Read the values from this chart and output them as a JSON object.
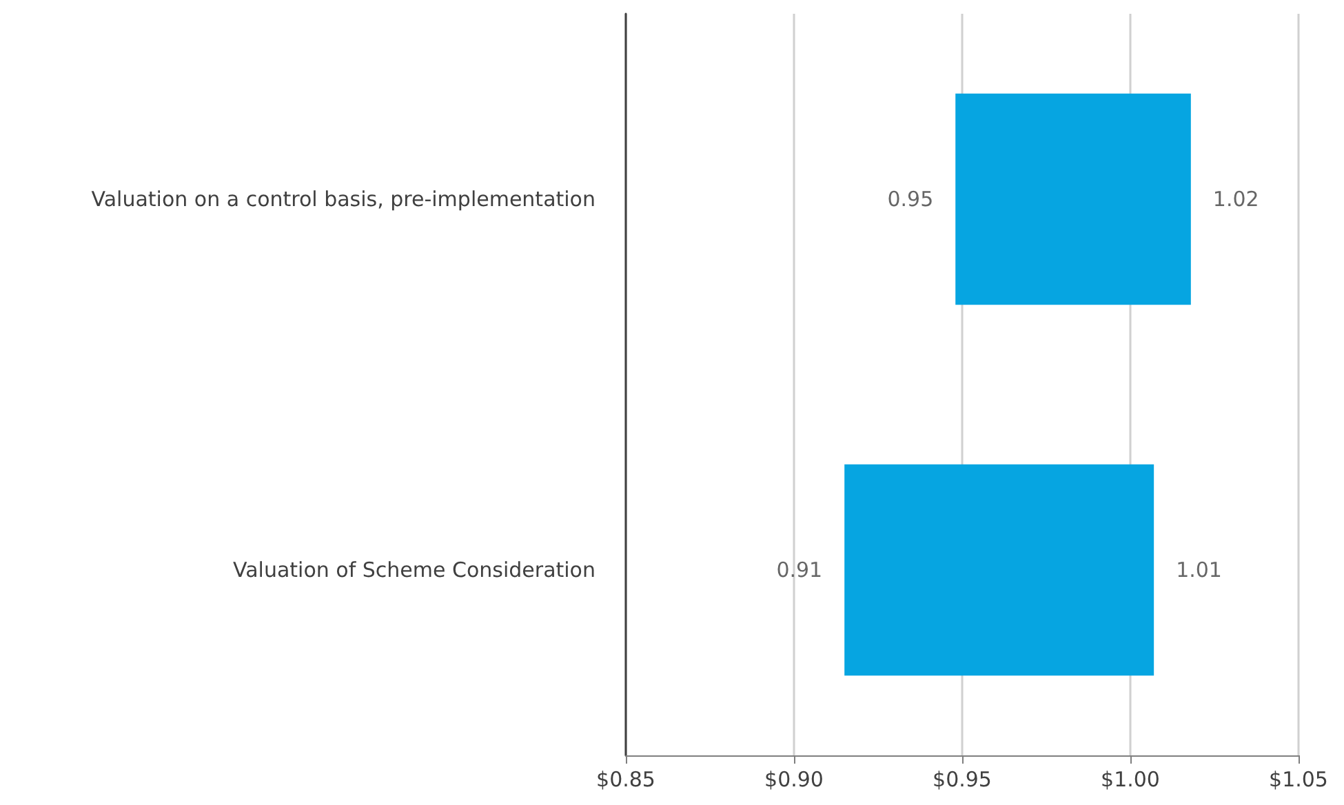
{
  "chart_data": {
    "type": "bar",
    "orientation": "horizontal",
    "categories": [
      "Valuation on a control basis, pre-implementation",
      "Valuation of Scheme Consideration"
    ],
    "base": [
      0.948,
      0.915
    ],
    "values": [
      0.07,
      0.092
    ],
    "color": "#06a5e1",
    "xlim": [
      0.85,
      1.05
    ],
    "xticks": [
      {
        "value": 0.85,
        "label": "$0.85"
      },
      {
        "value": 0.9,
        "label": "$0.90"
      },
      {
        "value": 0.95,
        "label": "$0.95"
      },
      {
        "value": 1.0,
        "label": "$1.00"
      },
      {
        "value": 1.05,
        "label": "$1.05"
      }
    ],
    "annotations": [
      {
        "text": "0.95",
        "x": 0.948,
        "y": "Valuation on a control basis, pre-implementation"
      },
      {
        "text": "1.02",
        "x": 1.018,
        "y": "Valuation on a control basis, pre-implementation"
      },
      {
        "text": "0.91",
        "x": 0.915,
        "y": "Valuation of Scheme Consideration"
      },
      {
        "text": "1.01",
        "x": 1.007,
        "y": "Valuation of Scheme Consideration"
      }
    ],
    "grid": "x"
  }
}
